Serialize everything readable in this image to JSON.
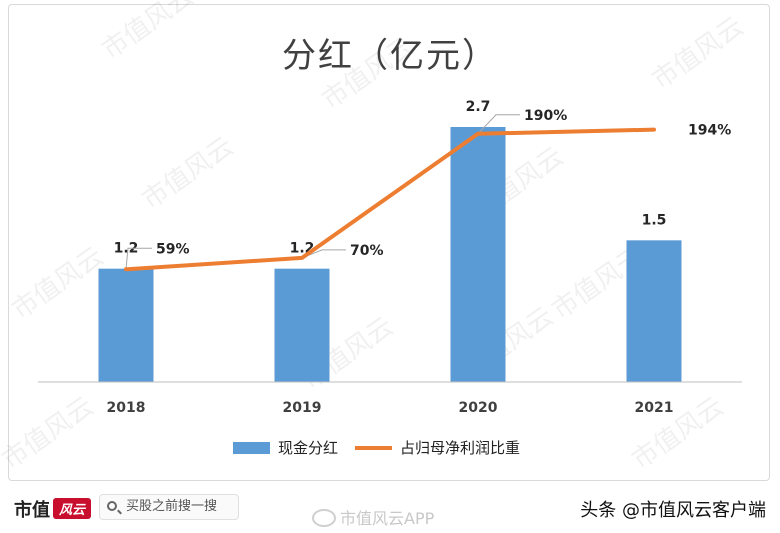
{
  "chart_data": {
    "type": "bar+line",
    "title": "分红（亿元）",
    "categories": [
      "2018",
      "2019",
      "2020",
      "2021"
    ],
    "series": [
      {
        "name": "现金分红",
        "type": "bar",
        "values": [
          1.2,
          1.2,
          2.7,
          1.5
        ],
        "labels": [
          "1.2",
          "1.2",
          "2.7",
          "1.5"
        ],
        "color": "#5b9bd5"
      },
      {
        "name": "占归母净利润比重",
        "type": "line",
        "values": [
          59,
          70,
          190,
          194
        ],
        "labels": [
          "59%",
          "70%",
          "190%",
          "194%"
        ],
        "color": "#ed7d31"
      }
    ],
    "bar_ylim": [
      0,
      2.7
    ],
    "line_ylim": [
      -50,
      300
    ],
    "legend_position": "bottom-center"
  },
  "watermark": "市值风云",
  "footer": {
    "logo_text": "市值",
    "logo_mark": "风云",
    "search_placeholder": "买股之前搜一搜",
    "weibo_text": "市值风云APP",
    "source": "头条 @市值风云客户端"
  }
}
